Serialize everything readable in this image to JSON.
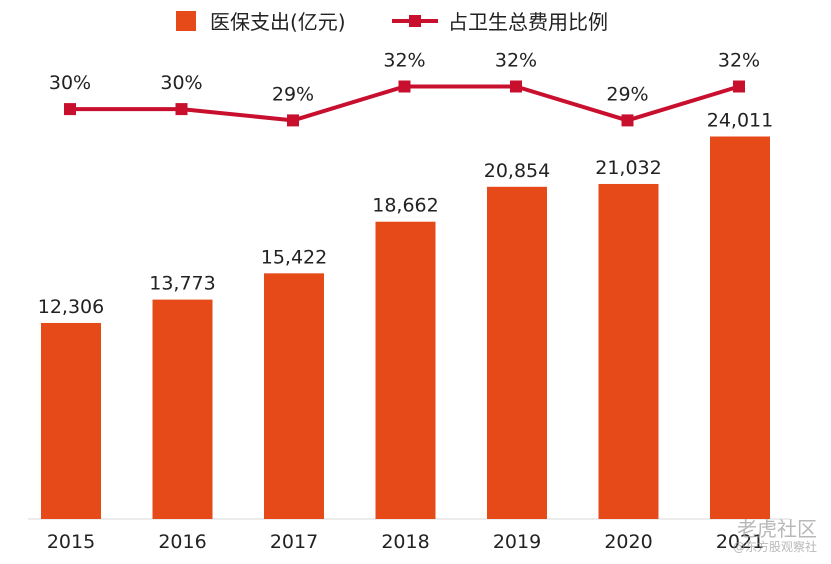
{
  "chart_data": {
    "type": "bar",
    "categories": [
      "2015",
      "2016",
      "2017",
      "2018",
      "2019",
      "2020",
      "2021"
    ],
    "series": [
      {
        "name": "医保支出(亿元)",
        "type": "bar",
        "values": [
          12306,
          13773,
          15422,
          18662,
          20854,
          21032,
          24011
        ],
        "labels": [
          "12,306",
          "13,773",
          "15,422",
          "18,662",
          "20,854",
          "21,032",
          "24,011"
        ],
        "color": "#E64A19"
      },
      {
        "name": "占卫生总费用比例",
        "type": "line",
        "values": [
          30,
          30,
          29,
          32,
          32,
          29,
          32
        ],
        "labels": [
          "30%",
          "30%",
          "29%",
          "32%",
          "32%",
          "29%",
          "32%"
        ],
        "color": "#C8102E"
      }
    ],
    "legend_position": "top",
    "grid": false
  },
  "watermark": {
    "main": "老虎社区",
    "sub": "@东方股观察社"
  }
}
